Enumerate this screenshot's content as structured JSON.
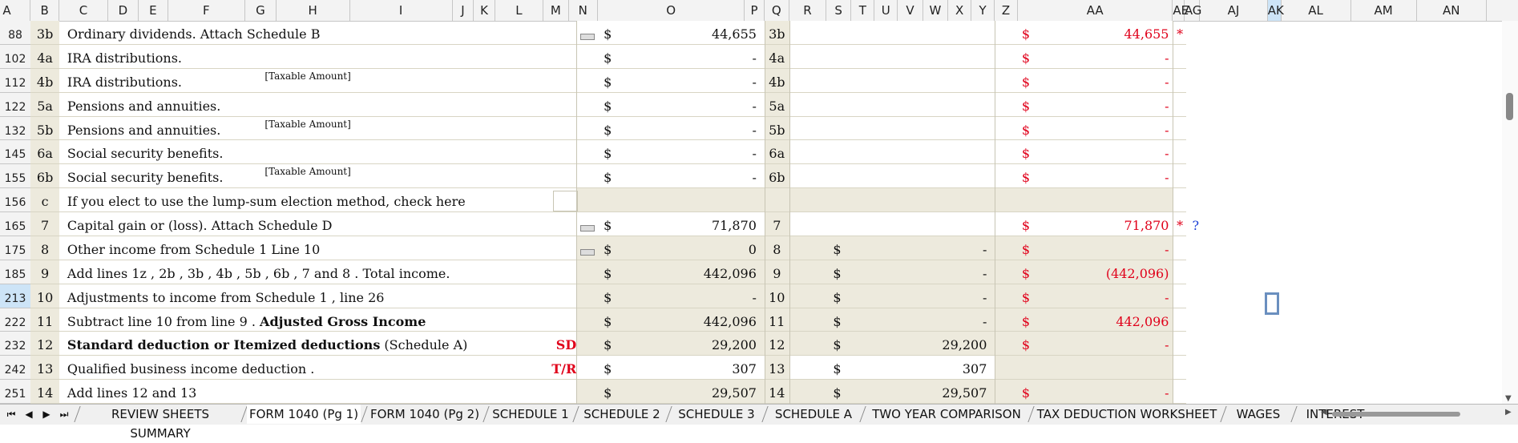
{
  "columns": [
    "A",
    "B",
    "C",
    "D",
    "E",
    "F",
    "G",
    "H",
    "I",
    "J",
    "K",
    "L",
    "M",
    "N",
    "O",
    "P",
    "Q",
    "R",
    "S",
    "T",
    "U",
    "V",
    "W",
    "X",
    "Y",
    "Z",
    "AA",
    "AE",
    "AG",
    "AJ",
    "AK",
    "AL",
    "AM",
    "AN"
  ],
  "selected_column": "AK",
  "selected_row": "213",
  "rows": [
    {
      "num": "88",
      "line": "3b",
      "desc": "Ordinary dividends. Attach Schedule B",
      "note": "",
      "mark": "",
      "dollar_o": "$",
      "amt_o": "44,655",
      "line_q": "3b",
      "dollar_s": "",
      "amt_w": "",
      "dollar_aa": "$",
      "amt_aa": "44,655",
      "flag1": "*",
      "flag2": ""
    },
    {
      "num": "102",
      "line": "4a",
      "desc": "IRA distributions.",
      "note": "",
      "mark": "",
      "dollar_o": "$",
      "amt_o": "-",
      "line_q": "4a",
      "dollar_s": "",
      "amt_w": "",
      "dollar_aa": "$",
      "amt_aa": "-",
      "flag1": "",
      "flag2": ""
    },
    {
      "num": "112",
      "line": "4b",
      "desc": "IRA distributions.",
      "note": "[Taxable Amount]",
      "mark": "",
      "dollar_o": "$",
      "amt_o": "-",
      "line_q": "4b",
      "dollar_s": "",
      "amt_w": "",
      "dollar_aa": "$",
      "amt_aa": "-",
      "flag1": "",
      "flag2": ""
    },
    {
      "num": "122",
      "line": "5a",
      "desc": "Pensions and annuities.",
      "note": "",
      "mark": "",
      "dollar_o": "$",
      "amt_o": "-",
      "line_q": "5a",
      "dollar_s": "",
      "amt_w": "",
      "dollar_aa": "$",
      "amt_aa": "-",
      "flag1": "",
      "flag2": ""
    },
    {
      "num": "132",
      "line": "5b",
      "desc": "Pensions and annuities.",
      "note": "[Taxable Amount]",
      "mark": "",
      "dollar_o": "$",
      "amt_o": "-",
      "line_q": "5b",
      "dollar_s": "",
      "amt_w": "",
      "dollar_aa": "$",
      "amt_aa": "-",
      "flag1": "",
      "flag2": ""
    },
    {
      "num": "145",
      "line": "6a",
      "desc": "Social security benefits.",
      "note": "",
      "mark": "",
      "dollar_o": "$",
      "amt_o": "-",
      "line_q": "6a",
      "dollar_s": "",
      "amt_w": "",
      "dollar_aa": "$",
      "amt_aa": "-",
      "flag1": "",
      "flag2": ""
    },
    {
      "num": "155",
      "line": "6b",
      "desc": "Social security benefits.",
      "note": "[Taxable Amount]",
      "mark": "",
      "dollar_o": "$",
      "amt_o": "-",
      "line_q": "6b",
      "dollar_s": "",
      "amt_w": "",
      "dollar_aa": "$",
      "amt_aa": "-",
      "flag1": "",
      "flag2": ""
    },
    {
      "num": "156",
      "line": "c",
      "desc": "If you elect to use the lump-sum election method, check here",
      "note": "",
      "mark": "",
      "dollar_o": "",
      "amt_o": "",
      "line_q": "",
      "dollar_s": "",
      "amt_w": "",
      "dollar_aa": "",
      "amt_aa": "",
      "flag1": "",
      "flag2": ""
    },
    {
      "num": "165",
      "line": "7",
      "desc": "Capital gain or (loss). Attach Schedule D",
      "note": "",
      "mark": "",
      "dollar_o": "$",
      "amt_o": "71,870",
      "line_q": "7",
      "dollar_s": "",
      "amt_w": "",
      "dollar_aa": "$",
      "amt_aa": "71,870",
      "flag1": "*",
      "flag2": "?"
    },
    {
      "num": "175",
      "line": "8",
      "desc": "Other income from Schedule 1 Line 10",
      "note": "",
      "mark": "",
      "dollar_o": "$",
      "amt_o": "0",
      "line_q": "8",
      "dollar_s": "$",
      "amt_w": "-",
      "dollar_aa": "$",
      "amt_aa": "-",
      "flag1": "",
      "flag2": ""
    },
    {
      "num": "185",
      "line": "9",
      "desc": "Add lines 1z , 2b , 3b , 4b , 5b , 6b , 7 and 8 . Total income.",
      "note": "",
      "mark": "",
      "dollar_o": "$",
      "amt_o": "442,096",
      "line_q": "9",
      "dollar_s": "$",
      "amt_w": "-",
      "dollar_aa": "$",
      "amt_aa": "(442,096)",
      "flag1": "",
      "flag2": ""
    },
    {
      "num": "213",
      "line": "10",
      "desc": "Adjustments to income from Schedule 1 , line 26",
      "note": "",
      "mark": "",
      "dollar_o": "$",
      "amt_o": "-",
      "line_q": "10",
      "dollar_s": "$",
      "amt_w": "-",
      "dollar_aa": "$",
      "amt_aa": "-",
      "flag1": "",
      "flag2": ""
    },
    {
      "num": "222",
      "line": "11",
      "desc": "Subtract line 10 from line 9 . ",
      "desc_bold": "Adjusted Gross Income",
      "note": "",
      "mark": "",
      "dollar_o": "$",
      "amt_o": "442,096",
      "line_q": "11",
      "dollar_s": "$",
      "amt_w": "-",
      "dollar_aa": "$",
      "amt_aa": "442,096",
      "flag1": "",
      "flag2": ""
    },
    {
      "num": "232",
      "line": "12",
      "desc": "",
      "desc_bold": "Standard deduction or Itemized deductions",
      "desc_tail": " (Schedule A)",
      "note": "",
      "mark": "SD",
      "dollar_o": "$",
      "amt_o": "29,200",
      "line_q": "12",
      "dollar_s": "$",
      "amt_w": "29,200",
      "dollar_aa": "$",
      "amt_aa": "-",
      "flag1": "",
      "flag2": ""
    },
    {
      "num": "242",
      "line": "13",
      "desc": "Qualified business income deduction .",
      "note": "",
      "mark": "T/R",
      "dollar_o": "$",
      "amt_o": "307",
      "line_q": "13",
      "dollar_s": "$",
      "amt_w": "307",
      "dollar_aa": "",
      "amt_aa": "",
      "flag1": "",
      "flag2": ""
    },
    {
      "num": "251",
      "line": "14",
      "desc": "Add lines 12 and 13",
      "note": "",
      "mark": "",
      "dollar_o": "$",
      "amt_o": "29,507",
      "line_q": "14",
      "dollar_s": "$",
      "amt_w": "29,507",
      "dollar_aa": "$",
      "amt_aa": "-",
      "flag1": "",
      "flag2": ""
    }
  ],
  "tabs": [
    "REVIEW SHEETS SUMMARY",
    "FORM 1040 (Pg 1)",
    "FORM 1040 (Pg 2)",
    "SCHEDULE 1",
    "SCHEDULE 2",
    "SCHEDULE 3",
    "SCHEDULE A",
    "TWO YEAR COMPARISON",
    "TAX DEDUCTION WORKSHEET",
    "WAGES",
    "INTEREST"
  ],
  "active_tab": "FORM 1040 (Pg 1)",
  "nav": [
    "first-sheet",
    "prev-sheet",
    "next-sheet",
    "last-sheet"
  ],
  "colors": {
    "accent_red": "#e0001a",
    "band": "#edeadd",
    "header": "#f3f3f3",
    "selected": "#cde4f7",
    "flag_blue": "#1a3fd6"
  }
}
